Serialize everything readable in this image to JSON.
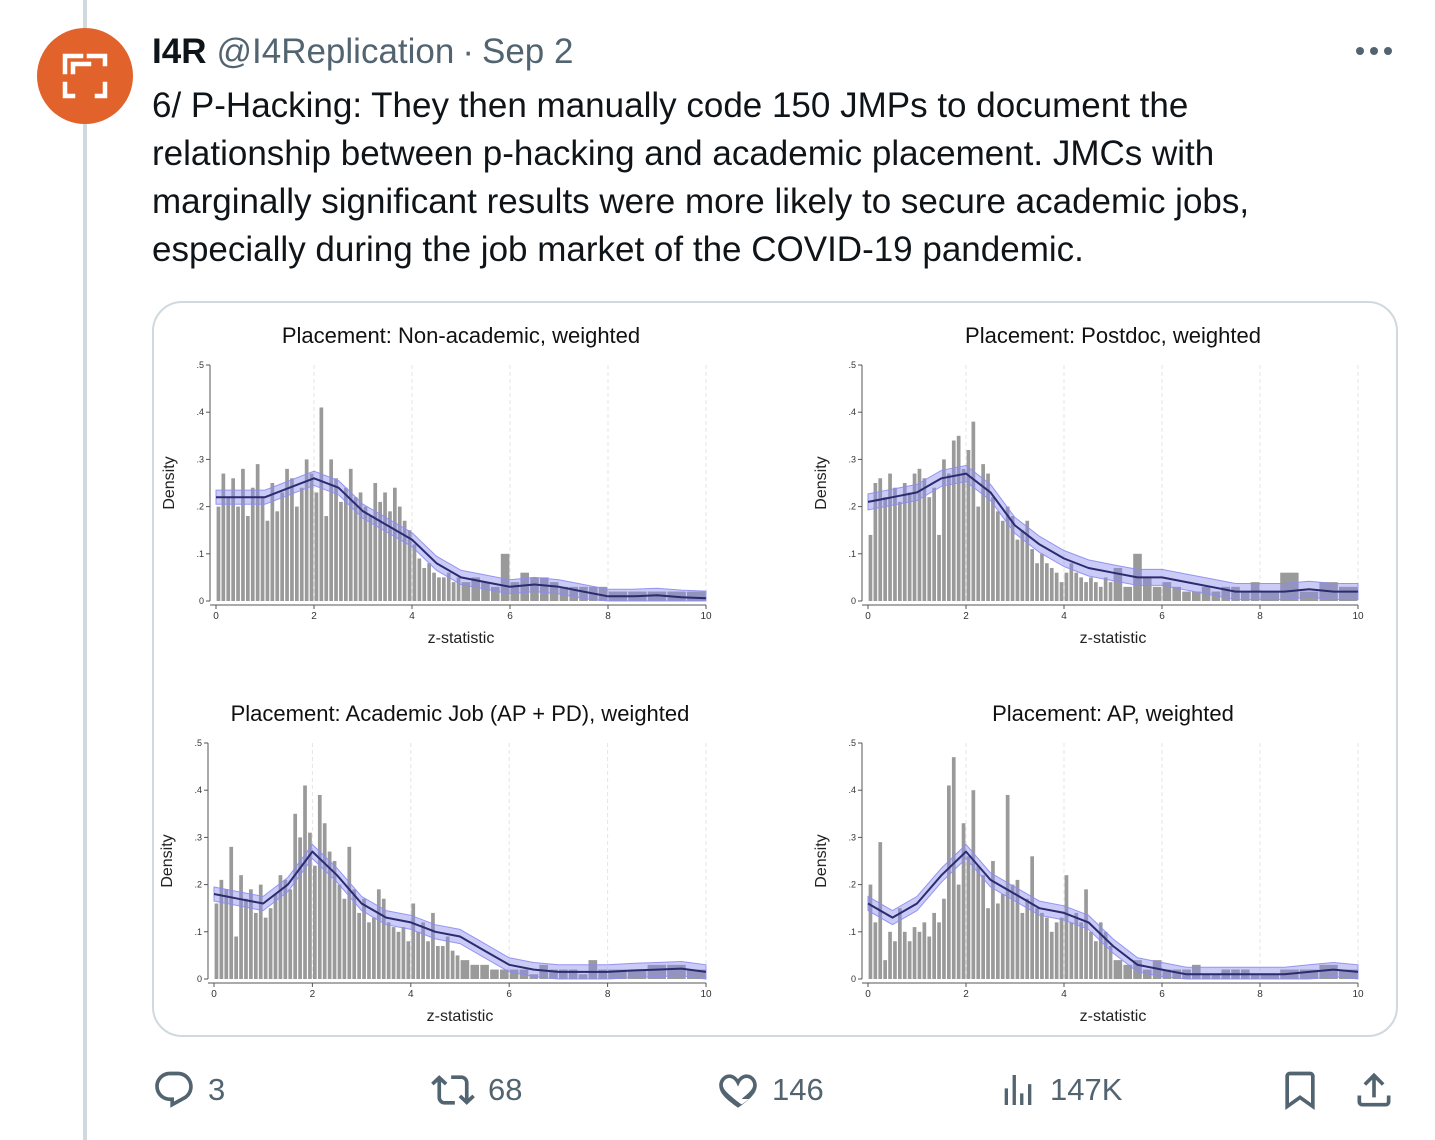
{
  "tweet": {
    "display_name": "I4R",
    "handle": "@I4Replication",
    "separator": "·",
    "date": "Sep 2",
    "text": "6/ P-Hacking: They then manually code 150 JMPs to document the\nrelationship between p-hacking and academic placement. JMCs with\nmarginally significant results were more likely to secure academic jobs,\nespecially during the job market of the COVID-19 pandemic.",
    "avatar_icon": "frame-corners-icon",
    "avatar_color": "#e2622b",
    "more_icon": "more-dots-icon"
  },
  "actions": {
    "reply": {
      "icon": "reply-icon",
      "count": "3"
    },
    "retweet": {
      "icon": "retweet-icon",
      "count": "68"
    },
    "like": {
      "icon": "heart-icon",
      "count": "146"
    },
    "views": {
      "icon": "views-chart-icon",
      "count": "147K"
    },
    "bookmark": {
      "icon": "bookmark-icon"
    },
    "share": {
      "icon": "share-icon"
    }
  },
  "chart_data": [
    {
      "type": "bar",
      "title": "Placement: Non-academic, weighted",
      "xlabel": "z-statistic",
      "ylabel": "Density",
      "xlim": [
        0,
        10
      ],
      "ylim": [
        0,
        0.5
      ],
      "xticks": [
        "0",
        "2",
        "4",
        "6",
        "8",
        "10"
      ],
      "yticks": [
        "0",
        ".1",
        ".2",
        ".3",
        ".4",
        ".5"
      ],
      "bar_color": "#9a9a9a",
      "kde_color": "#2b2b6e",
      "band_color": "#8c8cf0",
      "bins": [
        0,
        0.1,
        0.2,
        0.3,
        0.4,
        0.5,
        0.6,
        0.7,
        0.8,
        0.9,
        1.0,
        1.1,
        1.2,
        1.3,
        1.4,
        1.5,
        1.6,
        1.7,
        1.8,
        1.9,
        2.0,
        2.1,
        2.2,
        2.3,
        2.4,
        2.5,
        2.6,
        2.7,
        2.8,
        2.9,
        3.0,
        3.1,
        3.2,
        3.3,
        3.4,
        3.5,
        3.6,
        3.7,
        3.8,
        3.9,
        4.0,
        4.1,
        4.2,
        4.3,
        4.4,
        4.5,
        4.6,
        4.7,
        4.8,
        4.9,
        5.0,
        5.2,
        5.4,
        5.6,
        5.8,
        6.0,
        6.2,
        6.4,
        6.6,
        6.8,
        7.0,
        7.2,
        7.4,
        7.6,
        7.8,
        8.0,
        8.4,
        8.8,
        9.2,
        9.6,
        10.0
      ],
      "bar_values": [
        0.2,
        0.27,
        0.22,
        0.26,
        0.2,
        0.28,
        0.18,
        0.24,
        0.29,
        0.22,
        0.17,
        0.25,
        0.19,
        0.23,
        0.28,
        0.26,
        0.2,
        0.24,
        0.3,
        0.27,
        0.23,
        0.41,
        0.18,
        0.3,
        0.26,
        0.21,
        0.24,
        0.28,
        0.22,
        0.23,
        0.2,
        0.18,
        0.25,
        0.21,
        0.23,
        0.19,
        0.24,
        0.2,
        0.17,
        0.15,
        0.12,
        0.09,
        0.07,
        0.08,
        0.06,
        0.05,
        0.05,
        0.06,
        0.04,
        0.05,
        0.04,
        0.05,
        0.04,
        0.03,
        0.1,
        0.04,
        0.06,
        0.05,
        0.05,
        0.04,
        0.03,
        0.03,
        0.03,
        0.03,
        0.03,
        0.02,
        0.02,
        0.02,
        0.02,
        0.02
      ],
      "kde_x": [
        0,
        0.5,
        1,
        1.5,
        2,
        2.5,
        3,
        3.5,
        4,
        4.5,
        5,
        5.5,
        6,
        6.5,
        7,
        7.5,
        8,
        8.5,
        9,
        9.5,
        10
      ],
      "kde_y": [
        0.22,
        0.22,
        0.22,
        0.24,
        0.26,
        0.24,
        0.19,
        0.16,
        0.13,
        0.08,
        0.05,
        0.04,
        0.03,
        0.035,
        0.03,
        0.02,
        0.01,
        0.01,
        0.012,
        0.008,
        0.006
      ],
      "kde_band": 0.015
    },
    {
      "type": "bar",
      "title": "Placement: Postdoc, weighted",
      "xlabel": "z-statistic",
      "ylabel": "Density",
      "xlim": [
        0,
        10
      ],
      "ylim": [
        0,
        0.5
      ],
      "xticks": [
        "0",
        "2",
        "4",
        "6",
        "8",
        "10"
      ],
      "yticks": [
        "0",
        ".1",
        ".2",
        ".3",
        ".4",
        ".5"
      ],
      "bar_color": "#9a9a9a",
      "kde_color": "#2b2b6e",
      "band_color": "#8c8cf0",
      "bins": [
        0,
        0.1,
        0.2,
        0.3,
        0.4,
        0.5,
        0.6,
        0.7,
        0.8,
        0.9,
        1.0,
        1.1,
        1.2,
        1.3,
        1.4,
        1.5,
        1.6,
        1.7,
        1.8,
        1.9,
        2.0,
        2.1,
        2.2,
        2.3,
        2.4,
        2.5,
        2.6,
        2.7,
        2.8,
        2.9,
        3.0,
        3.1,
        3.2,
        3.3,
        3.4,
        3.5,
        3.6,
        3.7,
        3.8,
        3.9,
        4.0,
        4.1,
        4.2,
        4.3,
        4.4,
        4.5,
        4.6,
        4.7,
        4.8,
        4.9,
        5.0,
        5.2,
        5.4,
        5.6,
        5.8,
        6.0,
        6.2,
        6.4,
        6.6,
        6.8,
        7.0,
        7.2,
        7.4,
        7.6,
        7.8,
        8.0,
        8.4,
        8.8,
        9.2,
        9.6,
        10.0
      ],
      "bar_values": [
        0.14,
        0.25,
        0.26,
        0.22,
        0.27,
        0.24,
        0.21,
        0.25,
        0.23,
        0.27,
        0.28,
        0.26,
        0.22,
        0.24,
        0.14,
        0.3,
        0.27,
        0.34,
        0.35,
        0.28,
        0.32,
        0.38,
        0.2,
        0.29,
        0.27,
        0.22,
        0.19,
        0.17,
        0.2,
        0.18,
        0.13,
        0.15,
        0.17,
        0.11,
        0.08,
        0.1,
        0.08,
        0.07,
        0.06,
        0.04,
        0.06,
        0.08,
        0.06,
        0.05,
        0.04,
        0.05,
        0.04,
        0.03,
        0.05,
        0.04,
        0.07,
        0.03,
        0.1,
        0.05,
        0.03,
        0.04,
        0.03,
        0.02,
        0.02,
        0.03,
        0.02,
        0.03,
        0.03,
        0.02,
        0.04,
        0.02,
        0.06,
        0.02,
        0.04,
        0.03
      ],
      "kde_x": [
        0,
        0.5,
        1,
        1.5,
        2,
        2.5,
        3,
        3.5,
        4,
        4.5,
        5,
        5.5,
        6,
        6.5,
        7,
        7.5,
        8,
        8.5,
        9,
        9.5,
        10
      ],
      "kde_y": [
        0.21,
        0.22,
        0.23,
        0.26,
        0.27,
        0.23,
        0.16,
        0.12,
        0.09,
        0.07,
        0.06,
        0.05,
        0.05,
        0.04,
        0.03,
        0.02,
        0.02,
        0.02,
        0.025,
        0.02,
        0.02
      ],
      "kde_band": 0.017
    },
    {
      "type": "bar",
      "title": "Placement: Academic Job (AP + PD), weighted",
      "xlabel": "z-statistic",
      "ylabel": "Density",
      "xlim": [
        0,
        10
      ],
      "ylim": [
        0,
        0.5
      ],
      "xticks": [
        "0",
        "2",
        "4",
        "6",
        "8",
        "10"
      ],
      "yticks": [
        "0",
        ".1",
        ".2",
        ".3",
        ".4",
        ".5"
      ],
      "bar_color": "#9a9a9a",
      "kde_color": "#2b2b6e",
      "band_color": "#8c8cf0",
      "bins": [
        0,
        0.1,
        0.2,
        0.3,
        0.4,
        0.5,
        0.6,
        0.7,
        0.8,
        0.9,
        1.0,
        1.1,
        1.2,
        1.3,
        1.4,
        1.5,
        1.6,
        1.7,
        1.8,
        1.9,
        2.0,
        2.1,
        2.2,
        2.3,
        2.4,
        2.5,
        2.6,
        2.7,
        2.8,
        2.9,
        3.0,
        3.1,
        3.2,
        3.3,
        3.4,
        3.5,
        3.6,
        3.7,
        3.8,
        3.9,
        4.0,
        4.1,
        4.2,
        4.3,
        4.4,
        4.5,
        4.6,
        4.7,
        4.8,
        4.9,
        5.0,
        5.2,
        5.4,
        5.6,
        5.8,
        6.0,
        6.2,
        6.4,
        6.6,
        6.8,
        7.0,
        7.2,
        7.4,
        7.6,
        7.8,
        8.0,
        8.4,
        8.8,
        9.2,
        9.6,
        10.0
      ],
      "bar_values": [
        0.16,
        0.21,
        0.19,
        0.28,
        0.09,
        0.22,
        0.17,
        0.19,
        0.14,
        0.2,
        0.13,
        0.15,
        0.18,
        0.22,
        0.21,
        0.19,
        0.35,
        0.3,
        0.41,
        0.31,
        0.24,
        0.39,
        0.33,
        0.27,
        0.25,
        0.2,
        0.17,
        0.28,
        0.19,
        0.14,
        0.17,
        0.12,
        0.13,
        0.19,
        0.17,
        0.12,
        0.11,
        0.1,
        0.11,
        0.08,
        0.16,
        0.1,
        0.12,
        0.08,
        0.14,
        0.07,
        0.07,
        0.09,
        0.06,
        0.05,
        0.04,
        0.03,
        0.03,
        0.02,
        0.02,
        0.02,
        0.02,
        0.01,
        0.03,
        0.02,
        0.02,
        0.02,
        0.01,
        0.04,
        0.02,
        0.02,
        0.02,
        0.03,
        0.03,
        0.02
      ],
      "kde_x": [
        0,
        0.5,
        1,
        1.5,
        2,
        2.5,
        3,
        3.5,
        4,
        4.5,
        5,
        5.5,
        6,
        6.5,
        7,
        7.5,
        8,
        8.5,
        9,
        9.5,
        10
      ],
      "kde_y": [
        0.18,
        0.17,
        0.16,
        0.2,
        0.27,
        0.22,
        0.16,
        0.13,
        0.12,
        0.1,
        0.09,
        0.06,
        0.03,
        0.02,
        0.015,
        0.015,
        0.015,
        0.018,
        0.02,
        0.022,
        0.015
      ],
      "kde_band": 0.015
    },
    {
      "type": "bar",
      "title": "Placement: AP, weighted",
      "xlabel": "z-statistic",
      "ylabel": "Density",
      "xlim": [
        0,
        10
      ],
      "ylim": [
        0,
        0.5
      ],
      "xticks": [
        "0",
        "2",
        "4",
        "6",
        "8",
        "10"
      ],
      "yticks": [
        "0",
        ".1",
        ".2",
        ".3",
        ".4",
        ".5"
      ],
      "bar_color": "#9a9a9a",
      "kde_color": "#2b2b6e",
      "band_color": "#8c8cf0",
      "bins": [
        0,
        0.1,
        0.2,
        0.3,
        0.4,
        0.5,
        0.6,
        0.7,
        0.8,
        0.9,
        1.0,
        1.1,
        1.2,
        1.3,
        1.4,
        1.5,
        1.6,
        1.7,
        1.8,
        1.9,
        2.0,
        2.1,
        2.2,
        2.3,
        2.4,
        2.5,
        2.6,
        2.7,
        2.8,
        2.9,
        3.0,
        3.1,
        3.2,
        3.3,
        3.4,
        3.5,
        3.6,
        3.7,
        3.8,
        3.9,
        4.0,
        4.1,
        4.2,
        4.3,
        4.4,
        4.5,
        4.6,
        4.7,
        4.8,
        4.9,
        5.0,
        5.2,
        5.4,
        5.6,
        5.8,
        6.0,
        6.2,
        6.4,
        6.6,
        6.8,
        7.0,
        7.2,
        7.4,
        7.6,
        7.8,
        8.0,
        8.4,
        8.8,
        9.2,
        9.6,
        10.0
      ],
      "bar_values": [
        0.2,
        0.12,
        0.29,
        0.04,
        0.1,
        0.08,
        0.15,
        0.1,
        0.08,
        0.11,
        0.1,
        0.12,
        0.09,
        0.14,
        0.12,
        0.17,
        0.41,
        0.47,
        0.2,
        0.33,
        0.26,
        0.4,
        0.24,
        0.22,
        0.15,
        0.25,
        0.16,
        0.18,
        0.39,
        0.2,
        0.21,
        0.14,
        0.17,
        0.26,
        0.15,
        0.14,
        0.13,
        0.1,
        0.12,
        0.13,
        0.22,
        0.12,
        0.14,
        0.12,
        0.19,
        0.1,
        0.08,
        0.12,
        0.1,
        0.07,
        0.04,
        0.03,
        0.04,
        0.02,
        0.04,
        0.02,
        0.02,
        0.02,
        0.03,
        0.01,
        0.01,
        0.02,
        0.02,
        0.02,
        0.01,
        0.01,
        0.02,
        0.02,
        0.03,
        0.02
      ],
      "kde_x": [
        0,
        0.5,
        1,
        1.5,
        2,
        2.5,
        3,
        3.5,
        4,
        4.5,
        5,
        5.5,
        6,
        6.5,
        7,
        7.5,
        8,
        8.5,
        9,
        9.5,
        10
      ],
      "kde_y": [
        0.16,
        0.13,
        0.16,
        0.22,
        0.27,
        0.21,
        0.18,
        0.15,
        0.14,
        0.12,
        0.07,
        0.03,
        0.02,
        0.01,
        0.01,
        0.01,
        0.01,
        0.01,
        0.015,
        0.02,
        0.015
      ],
      "kde_band": 0.015
    }
  ]
}
